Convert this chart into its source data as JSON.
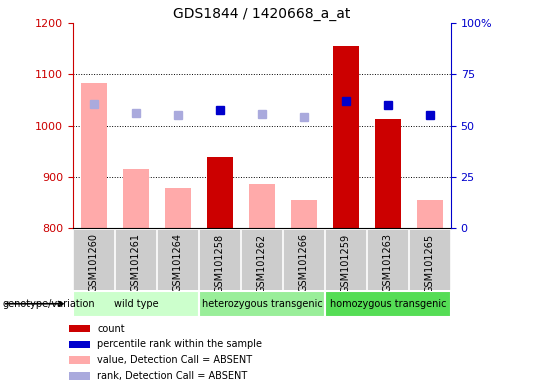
{
  "title": "GDS1844 / 1420668_a_at",
  "samples": [
    "GSM101260",
    "GSM101261",
    "GSM101264",
    "GSM101258",
    "GSM101262",
    "GSM101266",
    "GSM101259",
    "GSM101263",
    "GSM101265"
  ],
  "groups": [
    {
      "name": "wild type",
      "indices": [
        0,
        1,
        2
      ],
      "color": "#ccffcc"
    },
    {
      "name": "heterozygous transgenic",
      "indices": [
        3,
        4,
        5
      ],
      "color": "#99ee99"
    },
    {
      "name": "homozygous transgenic",
      "indices": [
        6,
        7,
        8
      ],
      "color": "#55dd55"
    }
  ],
  "count_values": [
    null,
    null,
    null,
    940,
    null,
    null,
    1155,
    1013,
    null
  ],
  "count_absent": [
    1083,
    915,
    879,
    null,
    886,
    855,
    null,
    null,
    855
  ],
  "percentile_dark": [
    null,
    null,
    null,
    1030,
    null,
    null,
    1048,
    1040,
    1020
  ],
  "percentile_light": [
    1043,
    1025,
    1020,
    null,
    1022,
    1018,
    null,
    null,
    null
  ],
  "ylim": [
    800,
    1200
  ],
  "y2lim": [
    0,
    100
  ],
  "yticks": [
    800,
    900,
    1000,
    1100,
    1200
  ],
  "y2ticks": [
    0,
    25,
    50,
    75,
    100
  ],
  "y2labels": [
    "0",
    "25",
    "50",
    "75",
    "100%"
  ],
  "bar_width": 0.6,
  "count_color": "#cc0000",
  "count_absent_color": "#ffaaaa",
  "percentile_color": "#0000cc",
  "percentile_absent_color": "#aaaadd",
  "grid_color": "black",
  "left_label_color": "#cc0000",
  "right_label_color": "#0000cc",
  "bg_color": "#cccccc",
  "legend_items": [
    {
      "color": "#cc0000",
      "label": "count"
    },
    {
      "color": "#0000cc",
      "label": "percentile rank within the sample"
    },
    {
      "color": "#ffaaaa",
      "label": "value, Detection Call = ABSENT"
    },
    {
      "color": "#aaaadd",
      "label": "rank, Detection Call = ABSENT"
    }
  ]
}
